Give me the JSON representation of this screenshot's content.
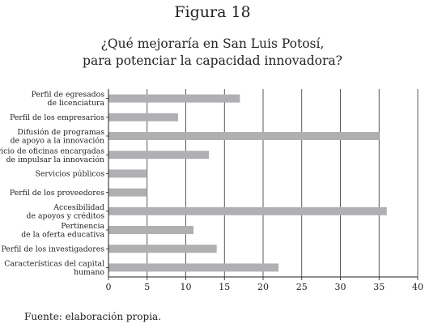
{
  "figure_label": "Figura 18",
  "source_note": "Fuente: elaboración propia.",
  "colors": {
    "bar": "#b0b0b3",
    "grid": "#333333",
    "axis": "#222222"
  },
  "chart_data": {
    "type": "bar",
    "orientation": "horizontal",
    "title": [
      "¿Qué mejoraría en San Luis Potosí,",
      "para potenciar la capacidad innovadora?"
    ],
    "categories": [
      [
        "Perfil de egresados",
        "de licenciatura"
      ],
      [
        "Perfil de los empresarios"
      ],
      [
        "Difusión de programas",
        "de apoyo a la innovación"
      ],
      [
        "Servicio de oficinas encargadas",
        "de impulsar la innovación"
      ],
      [
        "Servicios públicos"
      ],
      [
        "Perfil de los proveedores"
      ],
      [
        "Accesibilidad",
        "de apoyos y créditos"
      ],
      [
        "Pertinencia",
        "de la oferta educativa"
      ],
      [
        "Perfil de los investigadores"
      ],
      [
        "Características del capital",
        "humano"
      ]
    ],
    "values": [
      17,
      9,
      35,
      13,
      5,
      5,
      36,
      11,
      14,
      22
    ],
    "xlim": [
      0,
      40
    ],
    "xticks": [
      "0",
      "5",
      "10",
      "15",
      "20",
      "25",
      "30",
      "35",
      "40"
    ],
    "grid": "vertical",
    "xlabel": "",
    "ylabel": ""
  }
}
